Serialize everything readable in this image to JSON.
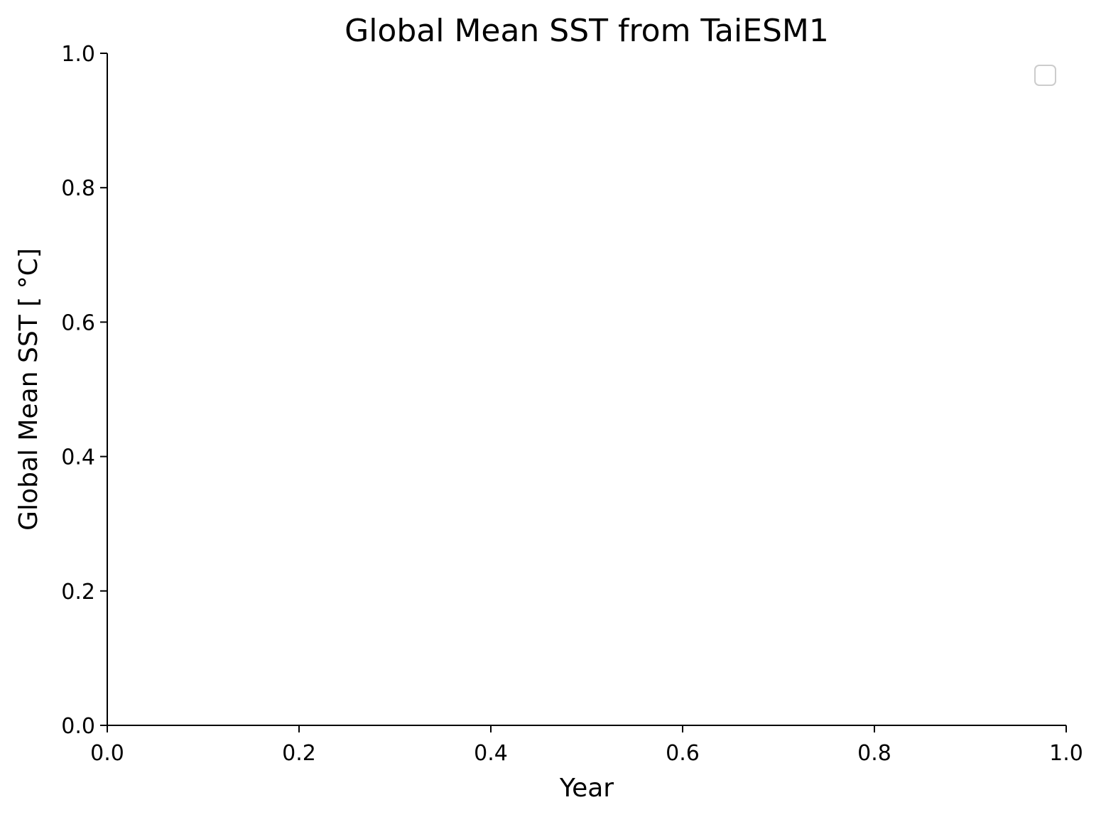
{
  "chart_data": {
    "type": "line",
    "title": "Global Mean SST from TaiESM1",
    "xlabel": "Year",
    "ylabel": "Global Mean SST [ $^\\circ$C]",
    "ylabel_display": "Global Mean SST [ °C]",
    "xlim": [
      0.0,
      1.0
    ],
    "ylim": [
      0.0,
      1.0
    ],
    "xticks": [
      "0.0",
      "0.2",
      "0.4",
      "0.6",
      "0.8",
      "1.0"
    ],
    "yticks": [
      "0.0",
      "0.2",
      "0.4",
      "0.6",
      "0.8",
      "1.0"
    ],
    "grid": false,
    "legend": {
      "placement": "upper-right",
      "entries": []
    },
    "spines": {
      "top": false,
      "right": false,
      "left": true,
      "bottom": true
    },
    "series": [],
    "colors": {
      "axis": "#000000",
      "legend_border": "#cccccc",
      "background": "#ffffff"
    }
  }
}
